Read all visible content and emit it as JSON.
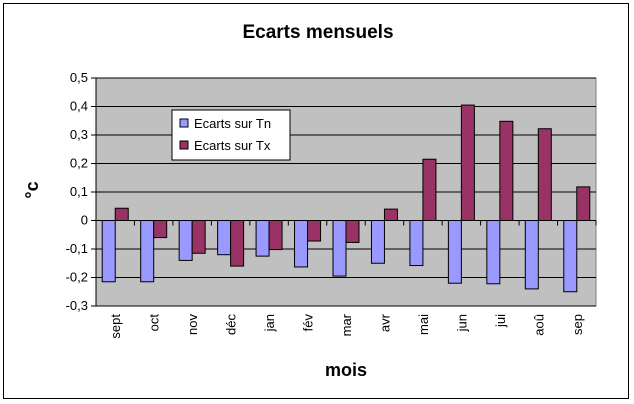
{
  "chart_data": {
    "type": "bar",
    "title": "Ecarts mensuels",
    "xlabel": "mois",
    "ylabel": "°c",
    "categories": [
      "sept",
      "oct",
      "nov",
      "déc",
      "jan",
      "fév",
      "mar",
      "avr",
      "mai",
      "jun",
      "jui",
      "aoû",
      "sep"
    ],
    "series": [
      {
        "name": "Ecarts sur Tn",
        "color": "#9999FF",
        "values": [
          -0.215,
          -0.215,
          -0.14,
          -0.12,
          -0.125,
          -0.163,
          -0.195,
          -0.15,
          -0.158,
          -0.22,
          -0.222,
          -0.24,
          -0.25
        ]
      },
      {
        "name": "Ecarts sur Tx",
        "color": "#993366",
        "values": [
          0.043,
          -0.06,
          -0.115,
          -0.16,
          -0.102,
          -0.072,
          -0.077,
          0.04,
          0.215,
          0.405,
          0.348,
          0.322,
          0.118
        ]
      }
    ],
    "ylim": [
      -0.3,
      0.5
    ],
    "yticks": [
      "-0,3",
      "-0,2",
      "-0,1",
      "0",
      "0,1",
      "0,2",
      "0,3",
      "0,4",
      "0,5"
    ],
    "plot_background": "#C0C0C0",
    "grid": true,
    "legend_position": "upper-left inside plot"
  }
}
